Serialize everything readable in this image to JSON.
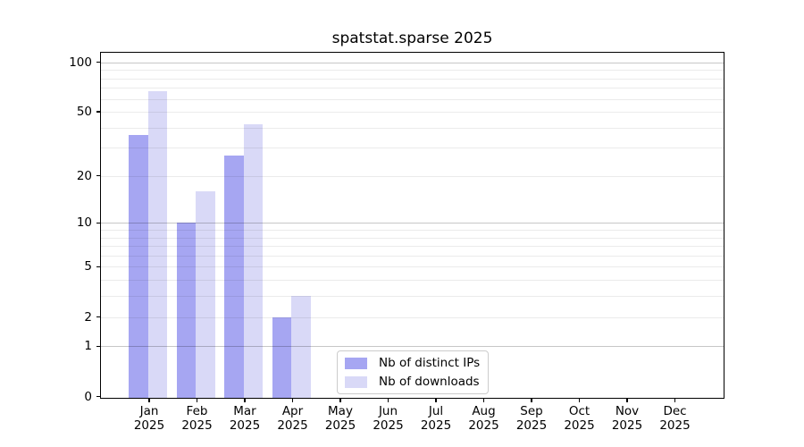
{
  "title": "spatstat.sparse 2025",
  "chart_data": {
    "type": "bar",
    "title": "spatstat.sparse 2025",
    "categories": [
      "Jan 2025",
      "Feb 2025",
      "Mar 2025",
      "Apr 2025",
      "May 2025",
      "Jun 2025",
      "Jul 2025",
      "Aug 2025",
      "Sep 2025",
      "Oct 2025",
      "Nov 2025",
      "Dec 2025"
    ],
    "series": [
      {
        "name": "Nb of distinct IPs",
        "color": "#a6a6f2",
        "values": [
          36,
          10,
          27,
          2,
          0,
          0,
          0,
          0,
          0,
          0,
          0,
          0
        ]
      },
      {
        "name": "Nb of downloads",
        "color": "#d9d9f7",
        "values": [
          67,
          16,
          42,
          3,
          0,
          0,
          0,
          0,
          0,
          0,
          0,
          0
        ]
      }
    ],
    "yscale": "log1p",
    "ylim": [
      0,
      114
    ],
    "ytick_values": [
      0,
      1,
      2,
      5,
      10,
      20,
      50,
      100
    ],
    "ytick_labels": [
      "0",
      "1",
      "2",
      "5",
      "10",
      "20",
      "50",
      "100"
    ],
    "major_gridlines": [
      1,
      10,
      100
    ],
    "minor_gridlines": [
      2,
      3,
      4,
      5,
      6,
      7,
      8,
      9,
      20,
      30,
      40,
      50,
      60,
      70,
      80,
      90
    ],
    "grid": "on",
    "legend_position": "bottom-center",
    "xlabel": "",
    "ylabel": ""
  }
}
